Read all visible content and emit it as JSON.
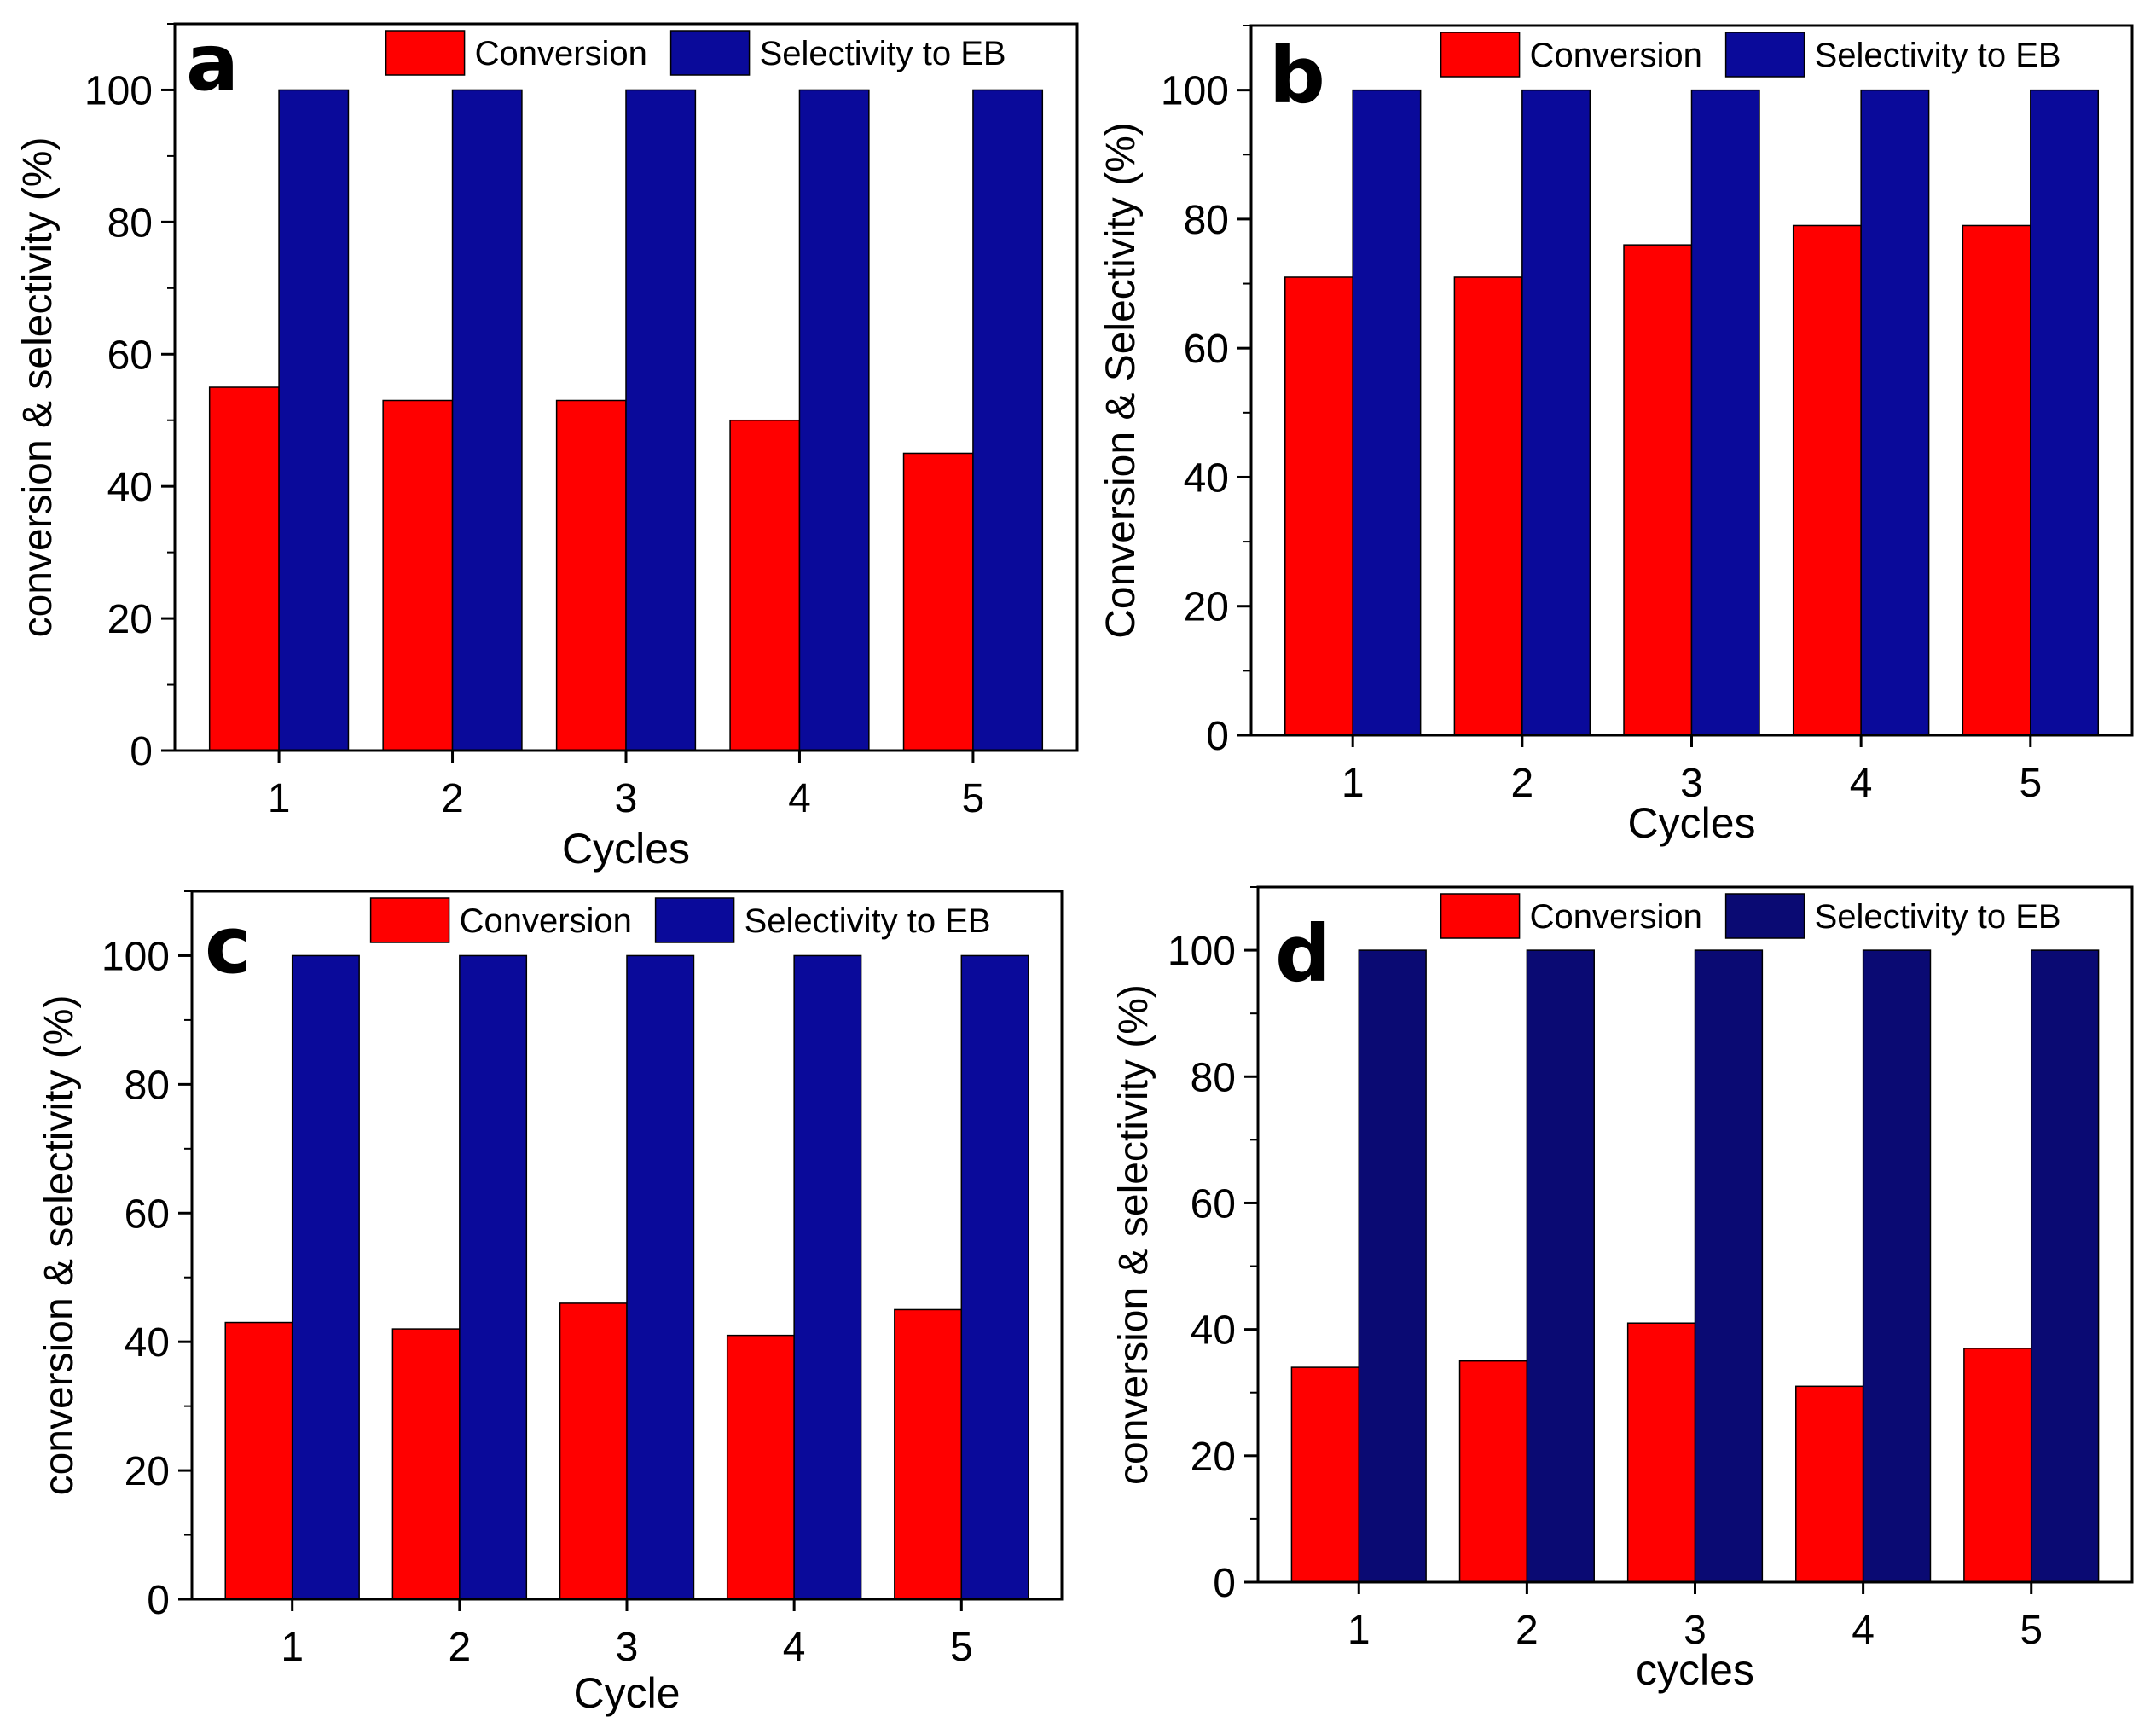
{
  "figure": {
    "colors": {
      "conversion": "#ff0000",
      "selectivity": "#0a0a9a",
      "selectivity_dark": "#0a0a73",
      "axis": "#000000"
    }
  },
  "chart_data": [
    {
      "panel": "a",
      "type": "bar",
      "categories": [
        "1",
        "2",
        "3",
        "4",
        "5"
      ],
      "series": [
        {
          "name": "Conversion",
          "values": [
            55,
            53,
            53,
            50,
            45
          ],
          "color": "#ff0000"
        },
        {
          "name": "Selectivity to EB",
          "values": [
            100,
            100,
            100,
            100,
            100
          ],
          "color": "#0a0a9a"
        }
      ],
      "xlabel": "Cycles",
      "ylabel": "conversion & selectivity (%)",
      "ylim": [
        0,
        110
      ],
      "yticks": [
        "0",
        "20",
        "40",
        "60",
        "80",
        "100"
      ],
      "legend": "top-right"
    },
    {
      "panel": "b",
      "type": "bar",
      "categories": [
        "1",
        "2",
        "3",
        "4",
        "5"
      ],
      "series": [
        {
          "name": "Conversion",
          "values": [
            71,
            71,
            76,
            79,
            79
          ],
          "color": "#ff0000"
        },
        {
          "name": "Selectivity to EB",
          "values": [
            100,
            100,
            100,
            100,
            100
          ],
          "color": "#0a0a9a"
        }
      ],
      "xlabel": "Cycles",
      "ylabel": "Conversion & Selectivity (%)",
      "ylim": [
        0,
        110
      ],
      "yticks": [
        "0",
        "20",
        "40",
        "60",
        "80",
        "100"
      ],
      "legend": "top-right"
    },
    {
      "panel": "c",
      "type": "bar",
      "categories": [
        "1",
        "2",
        "3",
        "4",
        "5"
      ],
      "series": [
        {
          "name": "Conversion",
          "values": [
            43,
            42,
            46,
            41,
            45
          ],
          "color": "#ff0000"
        },
        {
          "name": "Selectivity to EB",
          "values": [
            100,
            100,
            100,
            100,
            100
          ],
          "color": "#0a0a9a"
        }
      ],
      "xlabel": "Cycle",
      "ylabel": "conversion & selectivity (%)",
      "ylim": [
        0,
        110
      ],
      "yticks": [
        "0",
        "20",
        "40",
        "60",
        "80",
        "100"
      ],
      "legend": "top-right"
    },
    {
      "panel": "d",
      "type": "bar",
      "categories": [
        "1",
        "2",
        "3",
        "4",
        "5"
      ],
      "series": [
        {
          "name": "Conversion",
          "values": [
            34,
            35,
            41,
            31,
            37
          ],
          "color": "#ff0000"
        },
        {
          "name": "Selectivity to EB",
          "values": [
            100,
            100,
            100,
            100,
            100
          ],
          "color": "#0a0a73"
        }
      ],
      "xlabel": "cycles",
      "ylabel": "conversion & selectivity (%)",
      "ylim": [
        0,
        110
      ],
      "yticks": [
        "0",
        "20",
        "40",
        "60",
        "80",
        "100"
      ],
      "legend": "top-right"
    }
  ]
}
